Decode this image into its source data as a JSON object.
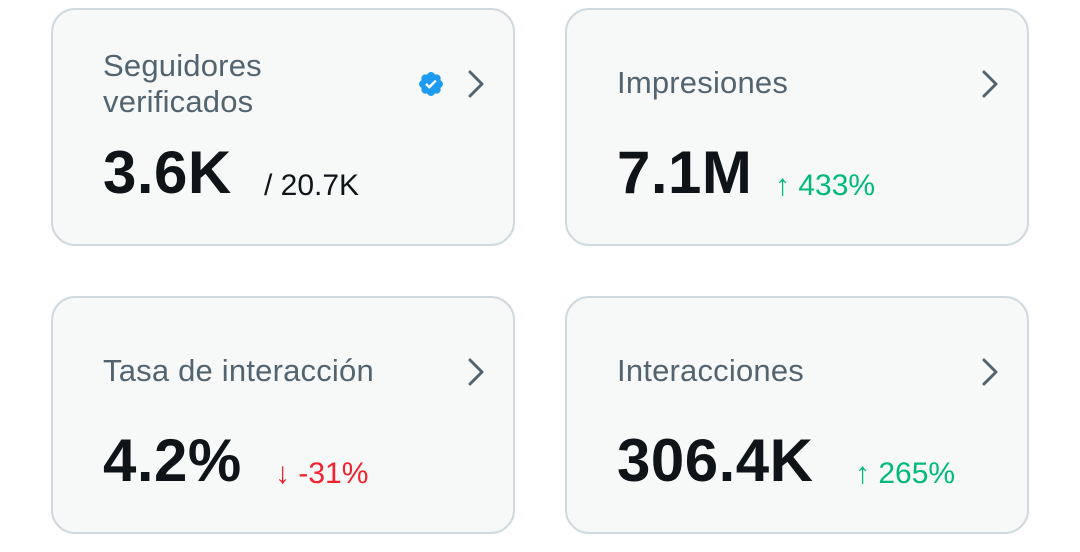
{
  "cards": [
    {
      "label": "Seguidores verificados",
      "value": "3.6K",
      "suffix": "/ 20.7K",
      "icon": "verified-badge-icon"
    },
    {
      "label": "Impresiones",
      "value": "7.1M",
      "change": "↑ 433%",
      "trend": "up"
    },
    {
      "label": "Tasa de interacción",
      "value": "4.2%",
      "change": "↓ -31%",
      "trend": "down"
    },
    {
      "label": "Interacciones",
      "value": "306.4K",
      "change": "↑ 265%",
      "trend": "up"
    }
  ],
  "colors": {
    "label": "#536471",
    "value": "#0f1419",
    "up": "#00ba7c",
    "down": "#f4212e",
    "verified": "#1d9bf0",
    "border": "#cfd9de",
    "card_bg": "#f7f9f9"
  }
}
